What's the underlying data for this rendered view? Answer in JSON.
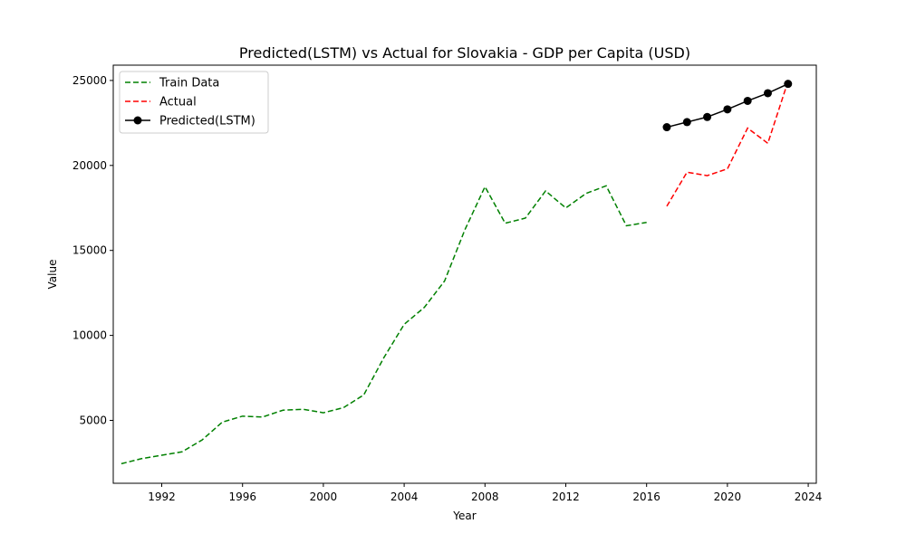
{
  "chart_data": {
    "type": "line",
    "title": "Predicted(LSTM) vs Actual for Slovakia - GDP per Capita (USD)",
    "xlabel": "Year",
    "ylabel": "Value",
    "xlim": [
      1989.6,
      2024.4
    ],
    "ylim": [
      1300,
      25900
    ],
    "xticks": [
      1992,
      1996,
      2000,
      2004,
      2008,
      2012,
      2016,
      2020,
      2024
    ],
    "yticks": [
      5000,
      10000,
      15000,
      20000,
      25000
    ],
    "grid": false,
    "legend_position": "top-left",
    "series": [
      {
        "name": "Train Data",
        "color": "#008000",
        "style": "dashed",
        "marker": "none",
        "x": [
          1990,
          1991,
          1992,
          1993,
          1994,
          1995,
          1996,
          1997,
          1998,
          1999,
          2000,
          2001,
          2002,
          2003,
          2004,
          2005,
          2006,
          2007,
          2008,
          2009,
          2010,
          2011,
          2012,
          2013,
          2014,
          2015,
          2016
        ],
        "y": [
          2450,
          2750,
          2950,
          3150,
          3850,
          4900,
          5250,
          5200,
          5600,
          5650,
          5450,
          5750,
          6500,
          8700,
          10650,
          11650,
          13200,
          16200,
          18750,
          16600,
          16900,
          18500,
          17500,
          18350,
          18800,
          16450,
          16650
        ]
      },
      {
        "name": "Actual",
        "color": "#ff0000",
        "style": "dashed",
        "marker": "none",
        "x": [
          2017,
          2018,
          2019,
          2020,
          2021,
          2022,
          2023
        ],
        "y": [
          17600,
          19600,
          19400,
          19800,
          22200,
          21300,
          24950
        ]
      },
      {
        "name": "Predicted(LSTM)",
        "color": "#000000",
        "style": "solid",
        "marker": "circle",
        "x": [
          2017,
          2018,
          2019,
          2020,
          2021,
          2022,
          2023
        ],
        "y": [
          22250,
          22550,
          22850,
          23300,
          23800,
          24250,
          24800
        ]
      }
    ]
  }
}
